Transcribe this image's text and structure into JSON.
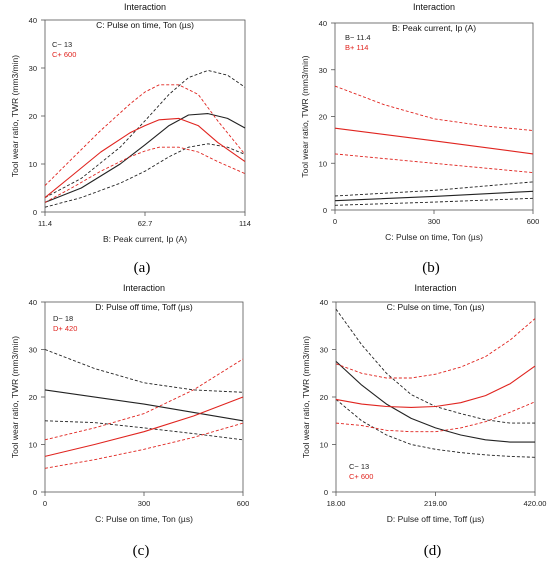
{
  "colors": {
    "black": "#222222",
    "red": "#e0241f"
  },
  "chart_data": [
    {
      "type": "line",
      "panel_label": "(a)",
      "title": "Interaction",
      "subtitle": "C: Pulse on time, Ton (µs)",
      "xlabel": "B: Peak current, Ip (A)",
      "ylabel": "Tool wear ratio, TWR (mm3/min)",
      "xlim": [
        11.4,
        114
      ],
      "ylim": [
        0,
        40
      ],
      "xticks": [
        "11.4",
        "62.7",
        "114"
      ],
      "yticks": [
        "0",
        "10",
        "20",
        "30",
        "40"
      ],
      "legend": [
        {
          "label": "C− 13",
          "color": "#222222"
        },
        {
          "label": "C+  600",
          "color": "#e0241f"
        }
      ],
      "legend_position": "top-left",
      "series": [
        {
          "color": "#222222",
          "style": "solid",
          "x": [
            11.4,
            30,
            50,
            62.7,
            75,
            85,
            95,
            105,
            114
          ],
          "y": [
            2,
            5,
            10,
            14,
            18,
            20.2,
            20.5,
            19.5,
            17.5
          ]
        },
        {
          "color": "#222222",
          "style": "dashed",
          "x": [
            11.4,
            30,
            50,
            62.7,
            75,
            85,
            95,
            105,
            114
          ],
          "y": [
            1,
            3,
            6,
            8.5,
            11.5,
            13.5,
            14.2,
            13.5,
            12
          ]
        },
        {
          "color": "#222222",
          "style": "dashed",
          "x": [
            11.4,
            30,
            50,
            62.7,
            75,
            85,
            95,
            105,
            114
          ],
          "y": [
            3,
            7,
            13.5,
            19,
            24.5,
            28,
            29.5,
            28.5,
            26
          ]
        },
        {
          "color": "#e0241f",
          "style": "solid",
          "x": [
            11.4,
            25,
            40,
            55,
            62.7,
            70,
            80,
            90,
            100,
            114
          ],
          "y": [
            3,
            7.5,
            12.5,
            16.5,
            18,
            19.2,
            19.5,
            18,
            14.5,
            10.5
          ]
        },
        {
          "color": "#e0241f",
          "style": "dashed",
          "x": [
            11.4,
            25,
            40,
            55,
            62.7,
            70,
            80,
            90,
            100,
            114
          ],
          "y": [
            2,
            5,
            8.5,
            11.5,
            12.7,
            13.5,
            13.5,
            12.5,
            10.5,
            8
          ]
        },
        {
          "color": "#e0241f",
          "style": "dashed",
          "x": [
            11.4,
            25,
            40,
            55,
            62.7,
            70,
            80,
            90,
            100,
            114
          ],
          "y": [
            5.5,
            11,
            17,
            22.5,
            25,
            26.5,
            26.5,
            24.5,
            19,
            12
          ]
        }
      ]
    },
    {
      "type": "line",
      "panel_label": "(b)",
      "title": "Interaction",
      "subtitle": "B: Peak current, Ip (A)",
      "xlabel": "C: Pulse on time, Ton (µs)",
      "ylabel": "Tool wear ratio, TWR (mm3/min)",
      "xlim": [
        0,
        600
      ],
      "ylim": [
        0,
        40
      ],
      "xticks": [
        "0",
        "300",
        "600"
      ],
      "yticks": [
        "0",
        "10",
        "20",
        "30",
        "40"
      ],
      "legend": [
        {
          "label": "B− 11.4",
          "color": "#222222"
        },
        {
          "label": "B+ 114",
          "color": "#e0241f"
        }
      ],
      "legend_position": "top-left",
      "series": [
        {
          "color": "#222222",
          "style": "solid",
          "x": [
            0,
            300,
            600
          ],
          "y": [
            2,
            2.9,
            4
          ]
        },
        {
          "color": "#222222",
          "style": "dashed",
          "x": [
            0,
            300,
            600
          ],
          "y": [
            1,
            1.7,
            2.5
          ]
        },
        {
          "color": "#222222",
          "style": "dashed",
          "x": [
            0,
            300,
            600
          ],
          "y": [
            3,
            4.2,
            6
          ]
        },
        {
          "color": "#e0241f",
          "style": "solid",
          "x": [
            0,
            300,
            600
          ],
          "y": [
            17.5,
            14.8,
            12
          ]
        },
        {
          "color": "#e0241f",
          "style": "dashed",
          "x": [
            0,
            300,
            600
          ],
          "y": [
            12,
            10,
            8
          ]
        },
        {
          "color": "#e0241f",
          "style": "dashed",
          "x": [
            0,
            150,
            300,
            450,
            600
          ],
          "y": [
            26.5,
            22.5,
            19.5,
            18,
            17
          ]
        }
      ]
    },
    {
      "type": "line",
      "panel_label": "(c)",
      "title": "Interaction",
      "subtitle": "D: Pulse off time, Toff (µs)",
      "xlabel": "C: Pulse on time, Ton (µs)",
      "ylabel": "Tool wear ratio, TWR (mm3/min)",
      "xlim": [
        0,
        600
      ],
      "ylim": [
        0,
        40
      ],
      "xticks": [
        "0",
        "300",
        "600"
      ],
      "yticks": [
        "0",
        "10",
        "20",
        "30",
        "40"
      ],
      "legend": [
        {
          "label": "D− 18",
          "color": "#222222"
        },
        {
          "label": "D+ 420",
          "color": "#e0241f"
        }
      ],
      "legend_position": "top-left",
      "series": [
        {
          "color": "#222222",
          "style": "solid",
          "x": [
            0,
            300,
            600
          ],
          "y": [
            21.5,
            18.5,
            15
          ]
        },
        {
          "color": "#222222",
          "style": "dashed",
          "x": [
            0,
            150,
            300,
            450,
            600
          ],
          "y": [
            30,
            26,
            23,
            21.5,
            21
          ]
        },
        {
          "color": "#222222",
          "style": "dashed",
          "x": [
            0,
            150,
            300,
            450,
            600
          ],
          "y": [
            15,
            14.6,
            13.5,
            12.3,
            11
          ]
        },
        {
          "color": "#e0241f",
          "style": "solid",
          "x": [
            0,
            150,
            300,
            450,
            600
          ],
          "y": [
            7.5,
            10,
            12.7,
            16,
            20
          ]
        },
        {
          "color": "#e0241f",
          "style": "dashed",
          "x": [
            0,
            150,
            300,
            450,
            600
          ],
          "y": [
            5,
            6.8,
            9,
            11.5,
            14.5
          ]
        },
        {
          "color": "#e0241f",
          "style": "dashed",
          "x": [
            0,
            150,
            300,
            450,
            600
          ],
          "y": [
            11,
            13.5,
            16.5,
            21.5,
            28
          ]
        }
      ]
    },
    {
      "type": "line",
      "panel_label": "(d)",
      "title": "Interaction",
      "subtitle": "C: Pulse on time, Ton (µs)",
      "xlabel": "D: Pulse off time, Toff (µs)",
      "ylabel": "Tool wear ratio, TWR (mm3/min)",
      "xlim": [
        18,
        420
      ],
      "ylim": [
        0,
        40
      ],
      "xticks": [
        "18.00",
        "219.00",
        "420.00"
      ],
      "yticks": [
        "0",
        "10",
        "20",
        "30",
        "40"
      ],
      "legend": [
        {
          "label": "C− 13",
          "color": "#222222"
        },
        {
          "label": "C+ 600",
          "color": "#e0241f"
        }
      ],
      "legend_position": "bottom-left",
      "series": [
        {
          "color": "#222222",
          "style": "solid",
          "x": [
            18,
            70,
            120,
            170,
            219,
            270,
            320,
            370,
            420
          ],
          "y": [
            27.5,
            22.5,
            18.5,
            15.5,
            13.5,
            12,
            11,
            10.5,
            10.5
          ]
        },
        {
          "color": "#222222",
          "style": "dashed",
          "x": [
            18,
            70,
            120,
            170,
            219,
            270,
            320,
            370,
            420
          ],
          "y": [
            38.5,
            31,
            25,
            20.5,
            18,
            16.5,
            15.2,
            14.5,
            14.5
          ]
        },
        {
          "color": "#222222",
          "style": "dashed",
          "x": [
            18,
            70,
            120,
            170,
            219,
            270,
            320,
            370,
            420
          ],
          "y": [
            19.5,
            15,
            12,
            10,
            9,
            8.3,
            7.8,
            7.5,
            7.3
          ]
        },
        {
          "color": "#e0241f",
          "style": "solid",
          "x": [
            18,
            70,
            120,
            170,
            219,
            270,
            320,
            370,
            420
          ],
          "y": [
            19.5,
            18.5,
            18,
            17.8,
            18,
            18.8,
            20.3,
            22.8,
            26.5
          ]
        },
        {
          "color": "#e0241f",
          "style": "dashed",
          "x": [
            18,
            70,
            120,
            170,
            219,
            270,
            320,
            370,
            420
          ],
          "y": [
            27,
            25,
            24,
            24,
            24.8,
            26.3,
            28.5,
            32,
            36.5
          ]
        },
        {
          "color": "#e0241f",
          "style": "dashed",
          "x": [
            18,
            70,
            120,
            170,
            219,
            270,
            320,
            370,
            420
          ],
          "y": [
            14.5,
            14,
            13,
            12.7,
            12.7,
            13.5,
            14.8,
            16.8,
            19
          ]
        }
      ]
    }
  ]
}
